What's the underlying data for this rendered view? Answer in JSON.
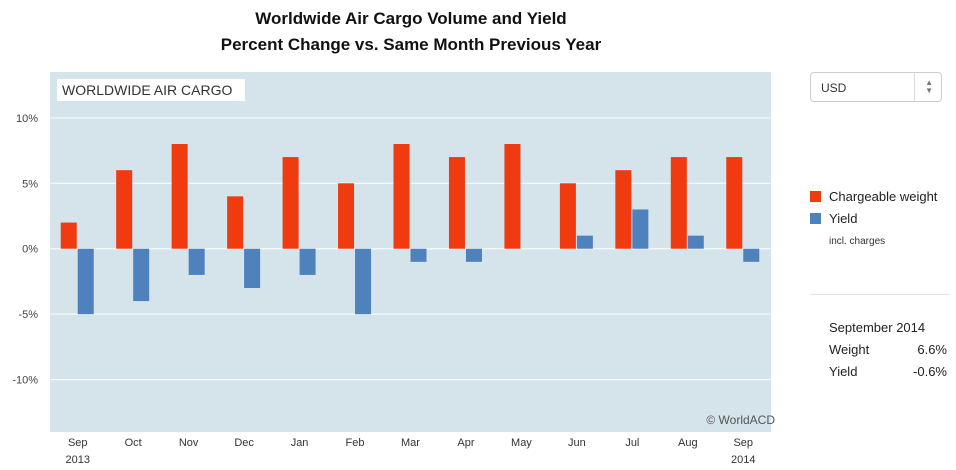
{
  "header": {
    "title_line1": "Worldwide Air Cargo Volume and Yield",
    "title_line2": "Percent Change vs. Same Month Previous Year"
  },
  "currency_select": {
    "value": "USD"
  },
  "legend": {
    "items": [
      {
        "label": "Chargeable weight",
        "color": "#f03a0f"
      },
      {
        "label": "Yield",
        "color": "#4f81bd"
      }
    ],
    "note": "incl. charges"
  },
  "summary": {
    "title": "September 2014",
    "rows": [
      {
        "label": "Weight",
        "value": "6.6%"
      },
      {
        "label": "Yield",
        "value": "-0.6%"
      }
    ]
  },
  "chart_data": {
    "type": "bar",
    "title": "Worldwide Air Cargo Volume and Yield",
    "subtitle": "Percent Change vs. Same Month Previous Year",
    "inner_label": "WORLDWIDE AIR CARGO",
    "credit": "© WorldACD",
    "categories": [
      "Sep",
      "Oct",
      "Nov",
      "Dec",
      "Jan",
      "Feb",
      "Mar",
      "Apr",
      "May",
      "Jun",
      "Jul",
      "Aug",
      "Sep"
    ],
    "year_labels": [
      {
        "index": 0,
        "text": "2013"
      },
      {
        "index": 12,
        "text": "2014"
      }
    ],
    "series": [
      {
        "name": "Chargeable weight",
        "color": "#f03a0f",
        "values": [
          2,
          6,
          8,
          4,
          7,
          5,
          8,
          7,
          8,
          5,
          6,
          7,
          7
        ]
      },
      {
        "name": "Yield",
        "color": "#4f81bd",
        "values": [
          -5,
          -4,
          -2,
          -3,
          -2,
          -5,
          -1,
          -1,
          0,
          1,
          3,
          1,
          -1
        ]
      }
    ],
    "ylim": [
      -14,
      13.5
    ],
    "yticks": [
      10,
      5,
      0,
      -5,
      -10
    ],
    "ytick_labels": [
      "10%",
      "5%",
      "0%",
      "-5%",
      "-10%"
    ],
    "grid": true,
    "plot_background": "#d5e3eb",
    "legend_position": "right"
  }
}
